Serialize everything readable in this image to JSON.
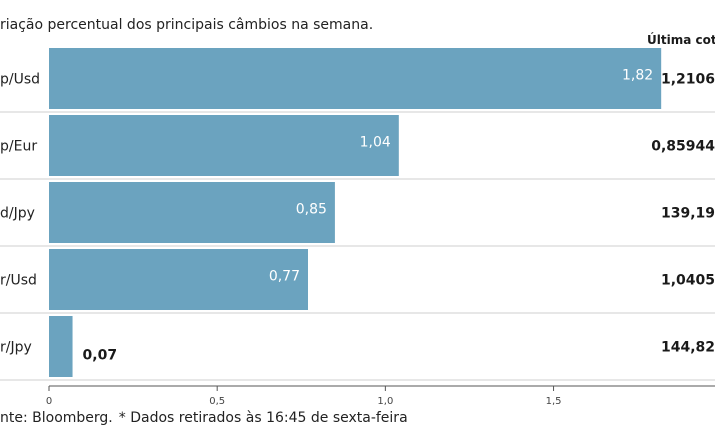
{
  "subtitle": "riação percentual dos principais câmbios na semana.",
  "last_quote_header": "Última cotaç",
  "source": "nte: Bloomberg.",
  "footnote": "* Dados retirados às 16:45 de sexta-feira",
  "colors": {
    "bar": "#6ba3bf",
    "grid": "#cfcfcf",
    "axis": "#555555"
  },
  "chart_data": {
    "type": "bar",
    "orientation": "horizontal",
    "title": "Variação percentual dos principais câmbios na semana",
    "categories": [
      "p/Usd",
      "p/Eur",
      "d/Jpy",
      "r/Usd",
      "r/Jpy"
    ],
    "values": [
      1.82,
      1.04,
      0.85,
      0.77,
      0.07
    ],
    "value_labels": [
      "1,82",
      "1,04",
      "0,85",
      "0,77",
      "0,07"
    ],
    "last_quotes": [
      "1,2106",
      "0,85944",
      "139,19",
      "1,0405",
      "144,82"
    ],
    "xlim": [
      0,
      1.98
    ],
    "xticks": [
      0,
      0.5,
      1.0,
      1.5
    ],
    "xtick_labels": [
      "0",
      "0,5",
      "1,0",
      "1,5"
    ],
    "xlabel": "",
    "ylabel": ""
  }
}
